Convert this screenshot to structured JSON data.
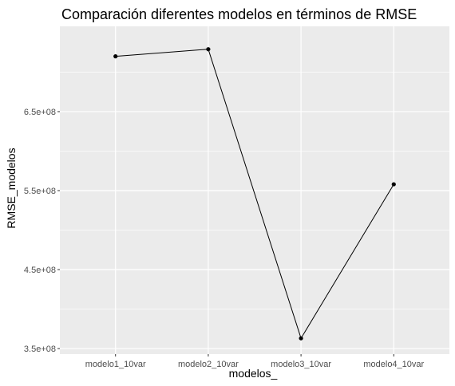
{
  "chart_data": {
    "type": "line",
    "title": "Comparación diferentes modelos en términos de RMSE",
    "xlabel": "modelos_",
    "ylabel": "RMSE_modelos",
    "categories": [
      "modelo1_10var",
      "modelo2_10var",
      "modelo3_10var",
      "modelo4_10var"
    ],
    "values": [
      720000000,
      729000000,
      363000000,
      558000000
    ],
    "ylim": [
      343000000,
      758000000
    ],
    "yticks": [
      350000000,
      450000000,
      550000000,
      650000000
    ],
    "ytick_labels": [
      "3.5e+08",
      "4.5e+08",
      "5.5e+08",
      "6.5e+08"
    ],
    "grid": true,
    "colors": {
      "panel": "#ebebeb",
      "grid_major": "#ffffff",
      "line": "#000000",
      "point": "#000000",
      "tick_text": "#4d4d4d"
    }
  }
}
